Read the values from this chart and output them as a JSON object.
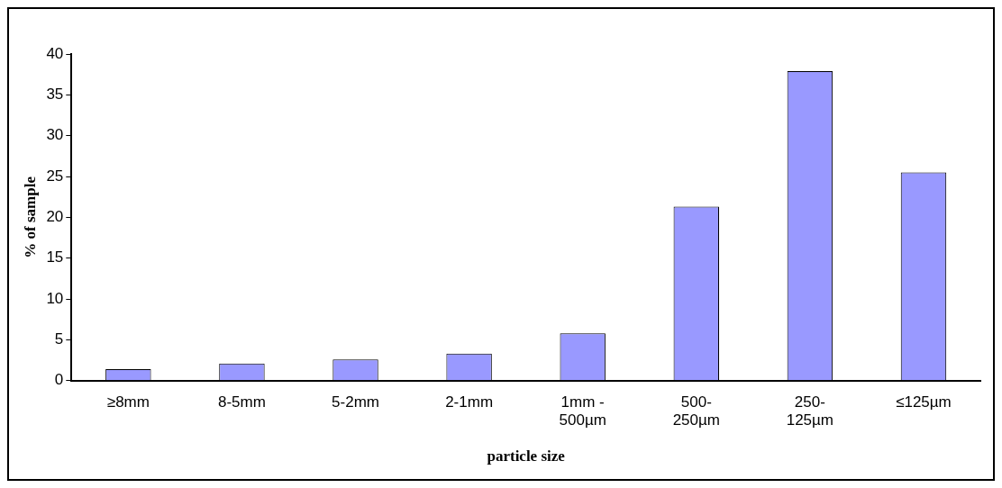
{
  "chart_data": {
    "type": "bar",
    "xlabel": "particle size",
    "ylabel": "% of sample",
    "categories": [
      "≥8mm",
      "8-5mm",
      "5-2mm",
      "2-1mm",
      "1mm - 500µm",
      "500-250µm",
      "250-125µm",
      "≤125µm"
    ],
    "values": [
      1.4,
      2.1,
      2.6,
      3.3,
      5.8,
      21.3,
      37.9,
      25.5
    ],
    "color": "#9999ff",
    "ylim": [
      0,
      40
    ],
    "yticks": [
      0,
      5,
      10,
      15,
      20,
      25,
      30,
      35,
      40
    ],
    "grid": false,
    "legend": false
  }
}
